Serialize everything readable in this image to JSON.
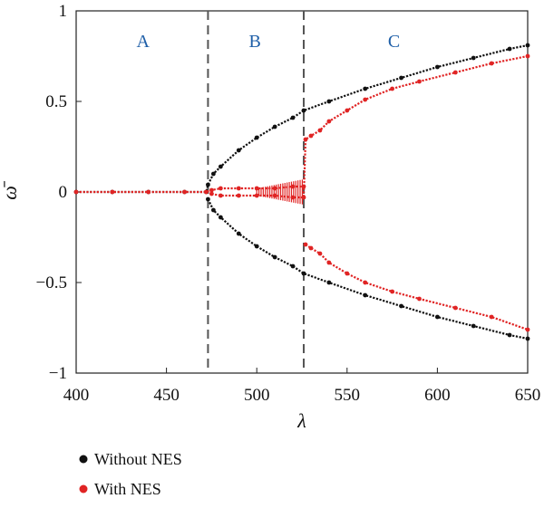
{
  "chart_data": {
    "type": "scatter",
    "xlabel": "λ",
    "ylabel": "ω̄",
    "xlim": [
      400,
      650
    ],
    "ylim": [
      -1,
      1
    ],
    "xticks": [
      400,
      450,
      500,
      550,
      600,
      650
    ],
    "yticks": [
      1,
      0.5,
      0,
      -0.5,
      -1
    ],
    "ytick_labels": [
      "1",
      "0.5",
      "0",
      "−0.5",
      "−1"
    ],
    "grid": false,
    "legend_position": "bottom-left",
    "vlines": [
      473,
      526
    ],
    "regions": [
      {
        "label": "A",
        "x": 437
      },
      {
        "label": "B",
        "x": 499
      },
      {
        "label": "C",
        "x": 576
      }
    ],
    "series": [
      {
        "name": "Without NES",
        "color": "#111111",
        "points": [
          [
            400,
            0
          ],
          [
            420,
            0
          ],
          [
            440,
            0
          ],
          [
            460,
            0
          ],
          [
            472,
            0
          ],
          [
            473,
            0.04
          ],
          [
            476,
            0.1
          ],
          [
            480,
            0.14
          ],
          [
            490,
            0.23
          ],
          [
            500,
            0.3
          ],
          [
            510,
            0.36
          ],
          [
            520,
            0.41
          ],
          [
            526,
            0.45
          ],
          [
            540,
            0.5
          ],
          [
            560,
            0.57
          ],
          [
            580,
            0.63
          ],
          [
            600,
            0.69
          ],
          [
            620,
            0.74
          ],
          [
            640,
            0.79
          ],
          [
            650,
            0.81
          ],
          [
            473,
            -0.04
          ],
          [
            476,
            -0.1
          ],
          [
            480,
            -0.14
          ],
          [
            490,
            -0.23
          ],
          [
            500,
            -0.3
          ],
          [
            510,
            -0.36
          ],
          [
            520,
            -0.41
          ],
          [
            526,
            -0.45
          ],
          [
            540,
            -0.5
          ],
          [
            560,
            -0.57
          ],
          [
            580,
            -0.63
          ],
          [
            600,
            -0.69
          ],
          [
            620,
            -0.74
          ],
          [
            640,
            -0.79
          ],
          [
            650,
            -0.81
          ]
        ]
      },
      {
        "name": "With NES",
        "color": "#e02424",
        "points": [
          [
            400,
            0
          ],
          [
            420,
            0
          ],
          [
            440,
            0
          ],
          [
            460,
            0
          ],
          [
            472,
            0
          ],
          [
            475,
            0.01
          ],
          [
            480,
            0.02
          ],
          [
            490,
            0.02
          ],
          [
            500,
            0.02
          ],
          [
            510,
            0.02
          ],
          [
            520,
            0.03
          ],
          [
            526,
            0.03
          ],
          [
            475,
            -0.01
          ],
          [
            480,
            -0.02
          ],
          [
            490,
            -0.02
          ],
          [
            500,
            -0.02
          ],
          [
            510,
            -0.02
          ],
          [
            520,
            -0.03
          ],
          [
            526,
            -0.03
          ],
          [
            527,
            0.29
          ],
          [
            530,
            0.31
          ],
          [
            535,
            0.34
          ],
          [
            540,
            0.39
          ],
          [
            550,
            0.45
          ],
          [
            560,
            0.51
          ],
          [
            575,
            0.57
          ],
          [
            590,
            0.61
          ],
          [
            610,
            0.66
          ],
          [
            630,
            0.71
          ],
          [
            650,
            0.75
          ],
          [
            527,
            -0.29
          ],
          [
            530,
            -0.31
          ],
          [
            535,
            -0.34
          ],
          [
            540,
            -0.39
          ],
          [
            550,
            -0.45
          ],
          [
            560,
            -0.5
          ],
          [
            575,
            -0.55
          ],
          [
            590,
            -0.59
          ],
          [
            610,
            -0.64
          ],
          [
            630,
            -0.69
          ],
          [
            650,
            -0.76
          ]
        ]
      }
    ]
  }
}
